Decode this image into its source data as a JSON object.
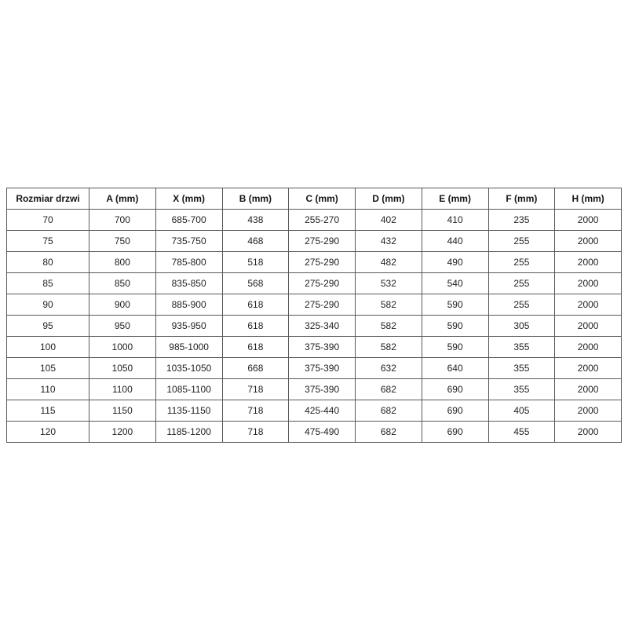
{
  "table": {
    "name": "door-dimensions-table",
    "headers": [
      "Rozmiar drzwi",
      "A (mm)",
      "X (mm)",
      "B (mm)",
      "C (mm)",
      "D (mm)",
      "E (mm)",
      "F (mm)",
      "H (mm)"
    ],
    "rows": [
      [
        "70",
        "700",
        "685-700",
        "438",
        "255-270",
        "402",
        "410",
        "235",
        "2000"
      ],
      [
        "75",
        "750",
        "735-750",
        "468",
        "275-290",
        "432",
        "440",
        "255",
        "2000"
      ],
      [
        "80",
        "800",
        "785-800",
        "518",
        "275-290",
        "482",
        "490",
        "255",
        "2000"
      ],
      [
        "85",
        "850",
        "835-850",
        "568",
        "275-290",
        "532",
        "540",
        "255",
        "2000"
      ],
      [
        "90",
        "900",
        "885-900",
        "618",
        "275-290",
        "582",
        "590",
        "255",
        "2000"
      ],
      [
        "95",
        "950",
        "935-950",
        "618",
        "325-340",
        "582",
        "590",
        "305",
        "2000"
      ],
      [
        "100",
        "1000",
        "985-1000",
        "618",
        "375-390",
        "582",
        "590",
        "355",
        "2000"
      ],
      [
        "105",
        "1050",
        "1035-1050",
        "668",
        "375-390",
        "632",
        "640",
        "355",
        "2000"
      ],
      [
        "110",
        "1100",
        "1085-1100",
        "718",
        "375-390",
        "682",
        "690",
        "355",
        "2000"
      ],
      [
        "115",
        "1150",
        "1135-1150",
        "718",
        "425-440",
        "682",
        "690",
        "405",
        "2000"
      ],
      [
        "120",
        "1200",
        "1185-1200",
        "718",
        "475-490",
        "682",
        "690",
        "455",
        "2000"
      ]
    ],
    "colors": {
      "border": "#595959",
      "text": "#1f1f1f",
      "background": "#ffffff"
    }
  }
}
